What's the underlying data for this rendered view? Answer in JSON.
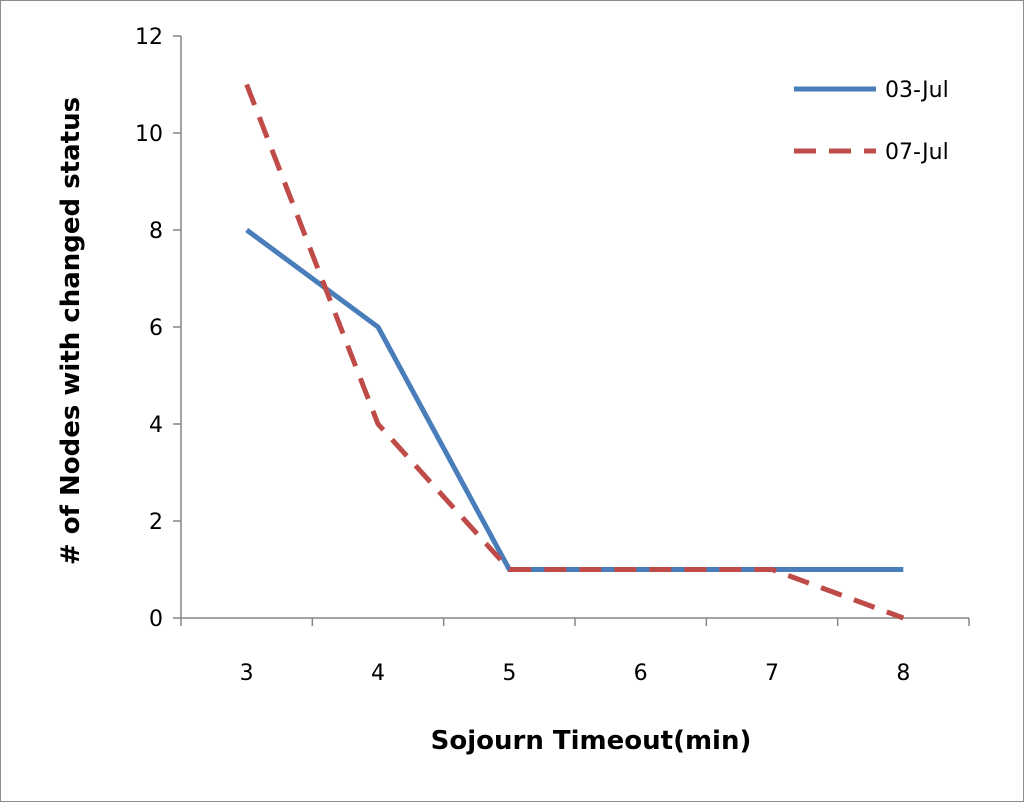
{
  "chart_data": {
    "type": "line",
    "title": "",
    "xlabel": "Sojourn Timeout(min)",
    "ylabel": "# of Nodes with changed status",
    "x": [
      3,
      4,
      5,
      6,
      7,
      8
    ],
    "ylim": [
      0,
      12
    ],
    "yticks": [
      0,
      2,
      4,
      6,
      8,
      10,
      12
    ],
    "grid": false,
    "legend_position": "top-right",
    "series": [
      {
        "name": "03-Jul",
        "values": [
          8,
          6,
          1,
          1,
          1,
          1
        ],
        "color": "#4a7ebb",
        "style": "solid"
      },
      {
        "name": "07-Jul",
        "values": [
          11,
          4,
          1,
          1,
          1,
          0
        ],
        "color": "#be4b48",
        "style": "dashed"
      }
    ]
  }
}
